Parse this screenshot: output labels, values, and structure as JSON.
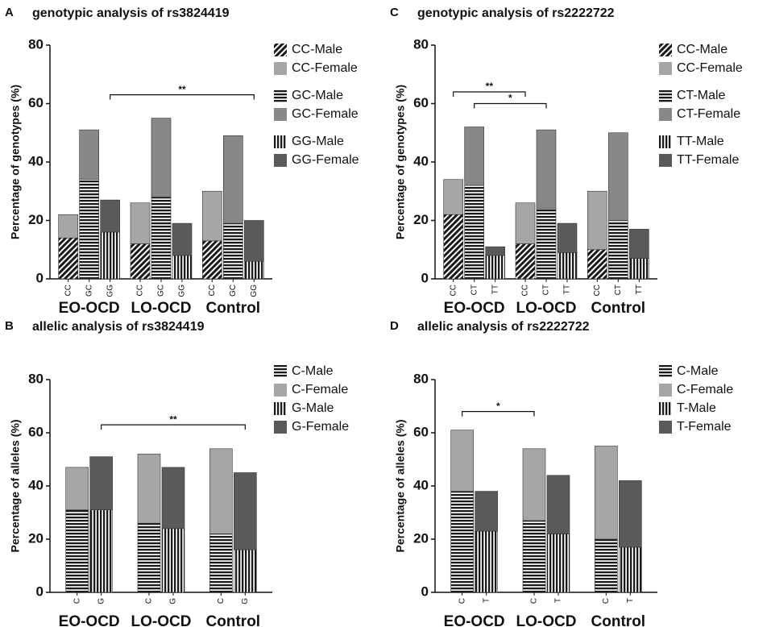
{
  "chart_data": [
    {
      "type": "bar",
      "stacked": true,
      "panel": "A",
      "title": "genotypic analysis of rs3824419",
      "ylabel": "Percentage of genotypes (%)",
      "groups": [
        "EO-OCD",
        "LO-OCD",
        "Control"
      ],
      "categories": [
        "CC",
        "GC",
        "GG",
        "CC",
        "GC",
        "GG",
        "CC",
        "GC",
        "GG"
      ],
      "ylim": [
        0,
        80
      ],
      "yticks": [
        0,
        20,
        40,
        60,
        80
      ],
      "series": [
        {
          "name": "CC-Male",
          "color": "#1a1a1a",
          "pattern": "diagonal",
          "values": [
            14,
            null,
            null,
            12,
            null,
            null,
            13,
            null,
            null
          ]
        },
        {
          "name": "CC-Female",
          "color": "#a6a6a6",
          "values": [
            8,
            null,
            null,
            14,
            null,
            null,
            17,
            null,
            null
          ]
        },
        {
          "name": "GC-Male",
          "color": "#1a1a1a",
          "pattern": "horizontal",
          "values": [
            null,
            34,
            null,
            null,
            28,
            null,
            null,
            19,
            null
          ]
        },
        {
          "name": "GC-Female",
          "color": "#888888",
          "values": [
            null,
            17,
            null,
            null,
            27,
            null,
            null,
            30,
            null
          ]
        },
        {
          "name": "GG-Male",
          "color": "#1a1a1a",
          "pattern": "vertical",
          "values": [
            null,
            null,
            16,
            null,
            null,
            8,
            null,
            null,
            6
          ]
        },
        {
          "name": "GG-Female",
          "color": "#5a5a5a",
          "values": [
            null,
            null,
            11,
            null,
            null,
            11,
            null,
            null,
            14
          ]
        }
      ],
      "annotations": [
        {
          "text": "**",
          "from": 2,
          "to": 8,
          "y": 63
        }
      ]
    },
    {
      "type": "bar",
      "stacked": true,
      "panel": "B",
      "title": "allelic analysis of rs3824419",
      "ylabel": "Percentage of alleles (%)",
      "groups": [
        "EO-OCD",
        "LO-OCD",
        "Control"
      ],
      "categories": [
        "C",
        "G",
        "C",
        "G",
        "C",
        "G"
      ],
      "ylim": [
        0,
        80
      ],
      "yticks": [
        0,
        20,
        40,
        60,
        80
      ],
      "series": [
        {
          "name": "C-Male",
          "color": "#1a1a1a",
          "pattern": "horizontal",
          "values": [
            31,
            null,
            26,
            null,
            22,
            null
          ]
        },
        {
          "name": "C-Female",
          "color": "#a6a6a6",
          "values": [
            16,
            null,
            26,
            null,
            32,
            null
          ]
        },
        {
          "name": "G-Male",
          "color": "#1a1a1a",
          "pattern": "vertical",
          "values": [
            null,
            31,
            null,
            24,
            null,
            16
          ]
        },
        {
          "name": "G-Female",
          "color": "#5a5a5a",
          "values": [
            null,
            20,
            null,
            23,
            null,
            29
          ]
        }
      ],
      "annotations": [
        {
          "text": "**",
          "from": 1,
          "to": 5,
          "y": 63
        }
      ]
    },
    {
      "type": "bar",
      "stacked": true,
      "panel": "C",
      "title": "genotypic analysis of rs2222722",
      "ylabel": "Percentage of genotypes (%)",
      "groups": [
        "EO-OCD",
        "LO-OCD",
        "Control"
      ],
      "categories": [
        "CC",
        "CT",
        "TT",
        "CC",
        "CT",
        "TT",
        "CC",
        "CT",
        "TT"
      ],
      "ylim": [
        0,
        80
      ],
      "yticks": [
        0,
        20,
        40,
        60,
        80
      ],
      "series": [
        {
          "name": "CC-Male",
          "color": "#1a1a1a",
          "pattern": "diagonal",
          "values": [
            22,
            null,
            null,
            12,
            null,
            null,
            10,
            null,
            null
          ]
        },
        {
          "name": "CC-Female",
          "color": "#a6a6a6",
          "values": [
            12,
            null,
            null,
            14,
            null,
            null,
            20,
            null,
            null
          ]
        },
        {
          "name": "CT-Male",
          "color": "#1a1a1a",
          "pattern": "horizontal",
          "values": [
            null,
            32,
            null,
            null,
            24,
            null,
            null,
            20,
            null
          ]
        },
        {
          "name": "CT-Female",
          "color": "#888888",
          "values": [
            null,
            20,
            null,
            null,
            27,
            null,
            null,
            30,
            null
          ]
        },
        {
          "name": "TT-Male",
          "color": "#1a1a1a",
          "pattern": "vertical",
          "values": [
            null,
            null,
            8,
            null,
            null,
            9,
            null,
            null,
            7
          ]
        },
        {
          "name": "TT-Female",
          "color": "#5a5a5a",
          "values": [
            null,
            null,
            3,
            null,
            null,
            10,
            null,
            null,
            10
          ]
        }
      ],
      "annotations": [
        {
          "text": "**",
          "from": 0,
          "to": 3,
          "y": 64
        },
        {
          "text": "*",
          "from": 1,
          "to": 4,
          "y": 60
        }
      ]
    },
    {
      "type": "bar",
      "stacked": true,
      "panel": "D",
      "title": "allelic analysis of rs2222722",
      "ylabel": "Percentage of alleles (%)",
      "groups": [
        "EO-OCD",
        "LO-OCD",
        "Control"
      ],
      "categories": [
        "C",
        "T",
        "C",
        "T",
        "C",
        "T"
      ],
      "ylim": [
        0,
        80
      ],
      "yticks": [
        0,
        20,
        40,
        60,
        80
      ],
      "series": [
        {
          "name": "C-Male",
          "color": "#1a1a1a",
          "pattern": "horizontal",
          "values": [
            38,
            null,
            27,
            null,
            20,
            null
          ]
        },
        {
          "name": "C-Female",
          "color": "#a6a6a6",
          "values": [
            23,
            null,
            27,
            null,
            35,
            null
          ]
        },
        {
          "name": "T-Male",
          "color": "#1a1a1a",
          "pattern": "vertical",
          "values": [
            null,
            23,
            null,
            22,
            null,
            17
          ]
        },
        {
          "name": "T-Female",
          "color": "#5a5a5a",
          "values": [
            null,
            15,
            null,
            22,
            null,
            25
          ]
        }
      ],
      "annotations": [
        {
          "text": "*",
          "from": 0,
          "to": 2,
          "y": 68
        }
      ]
    }
  ]
}
